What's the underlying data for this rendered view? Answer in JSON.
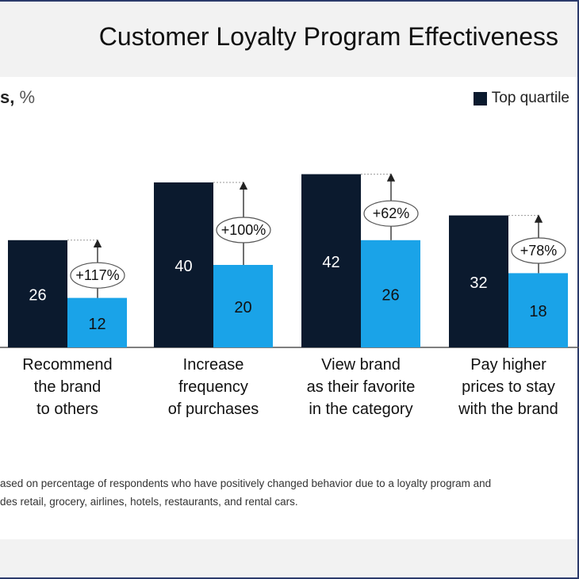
{
  "title": "Customer Loyalty Program Effectiveness",
  "subtitle_bold": "s,",
  "subtitle_unit": " %",
  "legend": {
    "label": "Top quartile",
    "color": "#0b1a2e"
  },
  "colors": {
    "top": "#0b1a2e",
    "other": "#1aa3e8"
  },
  "notes": [
    "ased on percentage of respondents who have positively changed behavior due to a loyalty program and",
    "des retail, grocery, airlines, hotels, restaurants, and rental cars."
  ],
  "chart_data": {
    "type": "bar",
    "categories": [
      [
        "Recommend",
        "the brand",
        "to others"
      ],
      [
        "Increase",
        "frequency",
        "of purchases"
      ],
      [
        "View brand",
        "as their favorite",
        "in the category"
      ],
      [
        "Pay higher",
        "prices to stay",
        "with the brand"
      ]
    ],
    "series": [
      {
        "name": "Top quartile",
        "values": [
          26,
          40,
          42,
          32
        ]
      },
      {
        "values": [
          12,
          20,
          26,
          18
        ]
      }
    ],
    "annotations": [
      "+117%",
      "+100%",
      "+62%",
      "+78%"
    ],
    "ylim": [
      0,
      50
    ]
  }
}
